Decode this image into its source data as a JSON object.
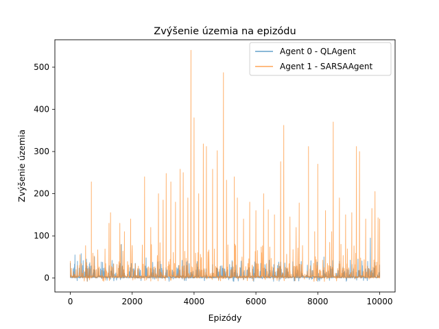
{
  "chart_data": {
    "type": "line",
    "title": "Zvýšenie územia na epizódu",
    "xlabel": "Epizódy",
    "ylabel": "Zvýšenie územia",
    "xlim": [
      -500,
      10500
    ],
    "ylim": [
      -33,
      565
    ],
    "xticks": [
      "0",
      "2000",
      "4000",
      "6000",
      "8000",
      "10000"
    ],
    "yticks": [
      "0",
      "100",
      "200",
      "300",
      "400",
      "500"
    ],
    "legend_position": "top-right",
    "grid": false,
    "series": [
      {
        "name": "Agent 0 - QLAgent",
        "color": "#1f77b4",
        "alpha": 0.6,
        "note_values": "dense noisy series of 10000 episodes; mostly 0–30 with sparse peaks",
        "peaks": [
          [
            0,
            35
          ],
          [
            150,
            55
          ],
          [
            230,
            40
          ],
          [
            350,
            58
          ],
          [
            520,
            45
          ],
          [
            780,
            50
          ],
          [
            1000,
            38
          ],
          [
            1350,
            42
          ],
          [
            1650,
            80
          ],
          [
            2100,
            35
          ],
          [
            2450,
            48
          ],
          [
            2900,
            40
          ],
          [
            3500,
            30
          ],
          [
            4600,
            32
          ],
          [
            5200,
            25
          ],
          [
            6000,
            35
          ],
          [
            6300,
            28
          ],
          [
            6700,
            30
          ],
          [
            7400,
            33
          ],
          [
            8200,
            50
          ],
          [
            8700,
            40
          ],
          [
            9300,
            45
          ],
          [
            9700,
            95
          ],
          [
            10000,
            30
          ]
        ]
      },
      {
        "name": "Agent 1 - SARSAAgent",
        "color": "#ff7f0e",
        "alpha": 0.6,
        "note_values": "dense noisy series of 10000 episodes; mostly 0–50 with tall sparse spikes",
        "peaks": [
          [
            0,
            40
          ],
          [
            680,
            228
          ],
          [
            1250,
            130
          ],
          [
            1300,
            155
          ],
          [
            1600,
            130
          ],
          [
            1750,
            110
          ],
          [
            1950,
            140
          ],
          [
            2400,
            240
          ],
          [
            2600,
            120
          ],
          [
            2850,
            200
          ],
          [
            3000,
            185
          ],
          [
            3100,
            248
          ],
          [
            3250,
            228
          ],
          [
            3400,
            180
          ],
          [
            3550,
            258
          ],
          [
            3650,
            250
          ],
          [
            3800,
            190
          ],
          [
            3900,
            540
          ],
          [
            4000,
            380
          ],
          [
            4150,
            200
          ],
          [
            4300,
            318
          ],
          [
            4400,
            312
          ],
          [
            4600,
            258
          ],
          [
            4750,
            302
          ],
          [
            4950,
            487
          ],
          [
            5050,
            232
          ],
          [
            5300,
            240
          ],
          [
            5400,
            190
          ],
          [
            5600,
            140
          ],
          [
            5800,
            180
          ],
          [
            6000,
            160
          ],
          [
            6250,
            200
          ],
          [
            6400,
            162
          ],
          [
            6600,
            150
          ],
          [
            6800,
            276
          ],
          [
            6900,
            362
          ],
          [
            7100,
            145
          ],
          [
            7300,
            120
          ],
          [
            7400,
            178
          ],
          [
            7700,
            312
          ],
          [
            7900,
            110
          ],
          [
            8000,
            270
          ],
          [
            8250,
            160
          ],
          [
            8450,
            110
          ],
          [
            8500,
            370
          ],
          [
            8700,
            190
          ],
          [
            8900,
            150
          ],
          [
            9100,
            155
          ],
          [
            9250,
            312
          ],
          [
            9350,
            300
          ],
          [
            9550,
            140
          ],
          [
            9750,
            165
          ],
          [
            9850,
            205
          ],
          [
            9950,
            143
          ],
          [
            10000,
            140
          ]
        ]
      }
    ]
  }
}
